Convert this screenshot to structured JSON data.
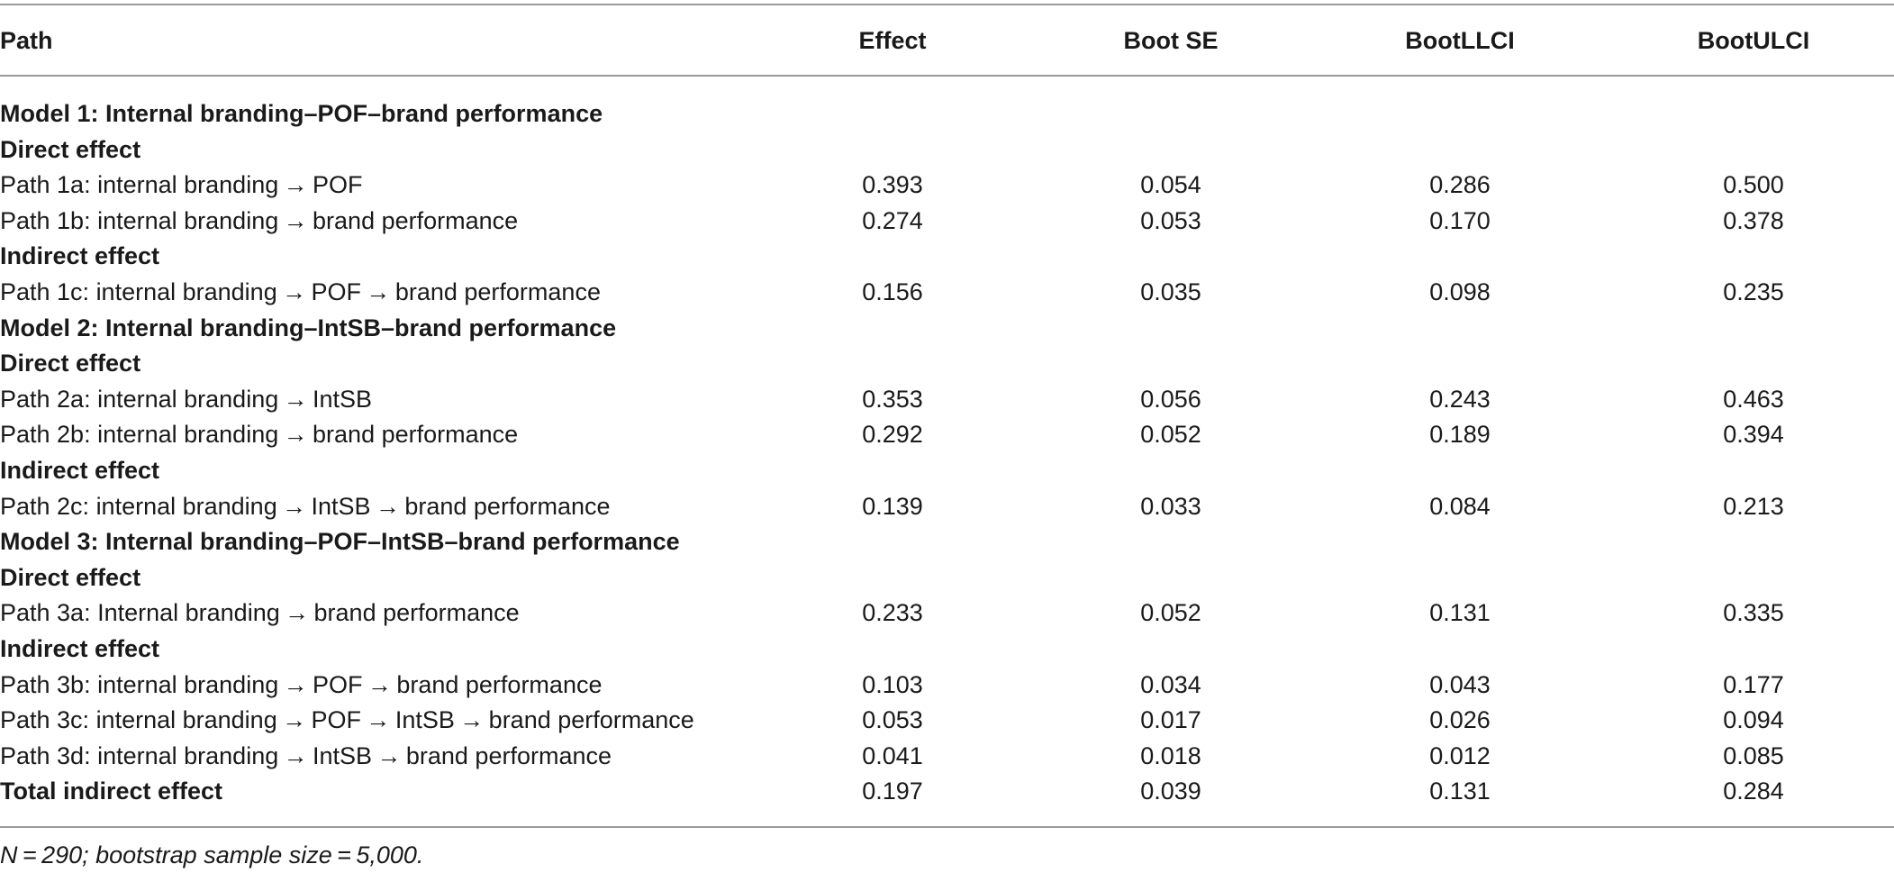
{
  "columns": [
    "Path",
    "Effect",
    "Boot SE",
    "BootLLCI",
    "BootULCI"
  ],
  "rows": [
    {
      "type": "section",
      "label": "Model 1: Internal branding–POF–brand performance"
    },
    {
      "type": "section",
      "label": "Direct effect"
    },
    {
      "type": "data",
      "label": "Path 1a: internal branding → POF",
      "effect": "0.393",
      "se": "0.054",
      "llci": "0.286",
      "ulci": "0.500"
    },
    {
      "type": "data",
      "label": "Path 1b: internal branding → brand performance",
      "effect": "0.274",
      "se": "0.053",
      "llci": "0.170",
      "ulci": "0.378"
    },
    {
      "type": "section",
      "label": "Indirect effect"
    },
    {
      "type": "data",
      "label": "Path 1c: internal branding → POF → brand performance",
      "effect": "0.156",
      "se": "0.035",
      "llci": "0.098",
      "ulci": "0.235"
    },
    {
      "type": "section",
      "label": "Model 2: Internal branding–IntSB–brand performance"
    },
    {
      "type": "section",
      "label": "Direct effect"
    },
    {
      "type": "data",
      "label": "Path 2a: internal branding → IntSB",
      "effect": "0.353",
      "se": "0.056",
      "llci": "0.243",
      "ulci": "0.463"
    },
    {
      "type": "data",
      "label": "Path 2b: internal branding → brand performance",
      "effect": "0.292",
      "se": "0.052",
      "llci": "0.189",
      "ulci": "0.394"
    },
    {
      "type": "section",
      "label": "Indirect effect"
    },
    {
      "type": "data",
      "label": "Path 2c: internal branding → IntSB → brand performance",
      "effect": "0.139",
      "se": "0.033",
      "llci": "0.084",
      "ulci": "0.213"
    },
    {
      "type": "section",
      "label": "Model 3: Internal branding–POF–IntSB–brand performance"
    },
    {
      "type": "section",
      "label": "Direct effect"
    },
    {
      "type": "data",
      "label": "Path 3a: Internal branding → brand performance",
      "effect": "0.233",
      "se": "0.052",
      "llci": "0.131",
      "ulci": "0.335"
    },
    {
      "type": "section",
      "label": "Indirect effect"
    },
    {
      "type": "data",
      "label": "Path 3b: internal branding → POF → brand performance",
      "effect": "0.103",
      "se": "0.034",
      "llci": "0.043",
      "ulci": "0.177"
    },
    {
      "type": "data",
      "label": "Path 3c: internal branding → POF → IntSB → brand performance",
      "effect": "0.053",
      "se": "0.017",
      "llci": "0.026",
      "ulci": "0.094"
    },
    {
      "type": "data",
      "label": "Path 3d: internal branding → IntSB → brand performance",
      "effect": "0.041",
      "se": "0.018",
      "llci": "0.012",
      "ulci": "0.085"
    },
    {
      "type": "total",
      "label": "Total indirect effect",
      "effect": "0.197",
      "se": "0.039",
      "llci": "0.131",
      "ulci": "0.284"
    }
  ],
  "footnote": "N = 290; bootstrap sample size = 5,000."
}
